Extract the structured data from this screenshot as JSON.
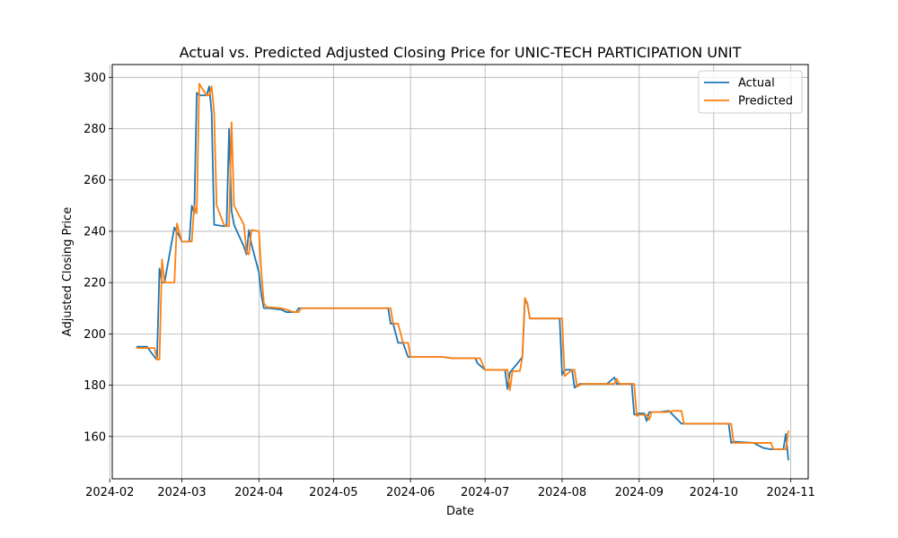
{
  "chart_data": {
    "type": "line",
    "title": "Actual vs. Predicted Adjusted Closing Price for UNIC-TECH PARTICIPATION UNIT",
    "xlabel": "Date",
    "ylabel": "Adjusted Closing Price",
    "xlim": [
      "2024-02-02",
      "2024-11-08"
    ],
    "ylim": [
      143.5,
      305
    ],
    "x_ticks": [
      "2024-02-01",
      "2024-03-01",
      "2024-04-01",
      "2024-05-01",
      "2024-06-01",
      "2024-07-01",
      "2024-08-01",
      "2024-09-01",
      "2024-10-01",
      "2024-11-01"
    ],
    "x_tick_labels": [
      "2024-02",
      "2024-03",
      "2024-04",
      "2024-05",
      "2024-06",
      "2024-07",
      "2024-08",
      "2024-09",
      "2024-10",
      "2024-11"
    ],
    "y_ticks": [
      160,
      180,
      200,
      220,
      240,
      260,
      280,
      300
    ],
    "y_tick_labels": [
      "160",
      "180",
      "200",
      "220",
      "240",
      "260",
      "280",
      "300"
    ],
    "grid": true,
    "legend_position": "top-right",
    "series": [
      {
        "name": "Actual",
        "color": "#1f77b4",
        "points": [
          [
            "2024-02-12",
            195
          ],
          [
            "2024-02-16",
            195
          ],
          [
            "2024-02-19",
            191
          ],
          [
            "2024-02-20",
            190
          ],
          [
            "2024-02-21",
            225.5
          ],
          [
            "2024-02-22",
            220
          ],
          [
            "2024-02-23",
            220
          ],
          [
            "2024-02-27",
            241.5
          ],
          [
            "2024-02-29",
            238
          ],
          [
            "2024-03-01",
            236
          ],
          [
            "2024-03-04",
            236
          ],
          [
            "2024-03-05",
            250
          ],
          [
            "2024-03-06",
            247
          ],
          [
            "2024-03-07",
            294
          ],
          [
            "2024-03-08",
            293
          ],
          [
            "2024-03-11",
            293
          ],
          [
            "2024-03-12",
            296.5
          ],
          [
            "2024-03-13",
            286
          ],
          [
            "2024-03-14",
            242.5
          ],
          [
            "2024-03-18",
            242
          ],
          [
            "2024-03-19",
            242
          ],
          [
            "2024-03-20",
            280
          ],
          [
            "2024-03-21",
            248
          ],
          [
            "2024-03-22",
            242.5
          ],
          [
            "2024-03-26",
            234
          ],
          [
            "2024-03-27",
            231
          ],
          [
            "2024-03-28",
            240.5
          ],
          [
            "2024-03-29",
            235
          ],
          [
            "2024-04-01",
            224
          ],
          [
            "2024-04-02",
            215
          ],
          [
            "2024-04-03",
            210
          ],
          [
            "2024-04-05",
            210
          ],
          [
            "2024-04-10",
            209.5
          ],
          [
            "2024-04-12",
            208.5
          ],
          [
            "2024-04-16",
            208.5
          ],
          [
            "2024-04-17",
            210
          ],
          [
            "2024-05-23",
            210
          ],
          [
            "2024-05-24",
            204
          ],
          [
            "2024-05-25",
            204
          ],
          [
            "2024-05-27",
            196.5
          ],
          [
            "2024-05-29",
            196.5
          ],
          [
            "2024-05-31",
            191
          ],
          [
            "2024-06-05",
            191
          ],
          [
            "2024-06-14",
            191
          ],
          [
            "2024-06-18",
            190.5
          ],
          [
            "2024-06-27",
            190.5
          ],
          [
            "2024-06-28",
            188.5
          ],
          [
            "2024-07-01",
            186
          ],
          [
            "2024-07-09",
            186
          ],
          [
            "2024-07-10",
            178.5
          ],
          [
            "2024-07-11",
            185
          ],
          [
            "2024-07-14",
            188.5
          ],
          [
            "2024-07-16",
            191
          ],
          [
            "2024-07-17",
            212.5
          ],
          [
            "2024-07-18",
            212
          ],
          [
            "2024-07-19",
            206
          ],
          [
            "2024-07-31",
            206
          ],
          [
            "2024-08-01",
            184
          ],
          [
            "2024-08-02",
            186
          ],
          [
            "2024-08-05",
            186
          ],
          [
            "2024-08-06",
            179
          ],
          [
            "2024-08-08",
            180.5
          ],
          [
            "2024-08-19",
            180.5
          ],
          [
            "2024-08-22",
            183
          ],
          [
            "2024-08-23",
            180.5
          ],
          [
            "2024-08-28",
            180.5
          ],
          [
            "2024-08-29",
            180.5
          ],
          [
            "2024-08-30",
            168.5
          ],
          [
            "2024-09-01",
            169
          ],
          [
            "2024-09-03",
            169
          ],
          [
            "2024-09-04",
            166
          ],
          [
            "2024-09-05",
            169.5
          ],
          [
            "2024-09-09",
            169.5
          ],
          [
            "2024-09-13",
            170
          ],
          [
            "2024-09-18",
            165
          ],
          [
            "2024-09-19",
            165
          ],
          [
            "2024-10-07",
            165
          ],
          [
            "2024-10-08",
            157.5
          ],
          [
            "2024-10-09",
            158
          ],
          [
            "2024-10-17",
            157.5
          ],
          [
            "2024-10-21",
            155.5
          ],
          [
            "2024-10-24",
            155
          ],
          [
            "2024-10-28",
            155
          ],
          [
            "2024-10-29",
            155
          ],
          [
            "2024-10-30",
            161
          ],
          [
            "2024-10-31",
            151
          ]
        ]
      },
      {
        "name": "Predicted",
        "color": "#ff7f0e",
        "points": [
          [
            "2024-02-12",
            194.5
          ],
          [
            "2024-02-16",
            194.5
          ],
          [
            "2024-02-19",
            194.5
          ],
          [
            "2024-02-20",
            190
          ],
          [
            "2024-02-21",
            190
          ],
          [
            "2024-02-22",
            229
          ],
          [
            "2024-02-23",
            220
          ],
          [
            "2024-02-26",
            220
          ],
          [
            "2024-02-27",
            220
          ],
          [
            "2024-02-28",
            243
          ],
          [
            "2024-03-01",
            236
          ],
          [
            "2024-03-04",
            236
          ],
          [
            "2024-03-05",
            236
          ],
          [
            "2024-03-06",
            250
          ],
          [
            "2024-03-07",
            247
          ],
          [
            "2024-03-08",
            297.5
          ],
          [
            "2024-03-11",
            293
          ],
          [
            "2024-03-12",
            293
          ],
          [
            "2024-03-13",
            296.5
          ],
          [
            "2024-03-14",
            286
          ],
          [
            "2024-03-15",
            250
          ],
          [
            "2024-03-18",
            242.5
          ],
          [
            "2024-03-19",
            242
          ],
          [
            "2024-03-20",
            242
          ],
          [
            "2024-03-21",
            282.5
          ],
          [
            "2024-03-22",
            250
          ],
          [
            "2024-03-26",
            242.5
          ],
          [
            "2024-03-27",
            232
          ],
          [
            "2024-03-28",
            231
          ],
          [
            "2024-03-29",
            240.5
          ],
          [
            "2024-04-01",
            240
          ],
          [
            "2024-04-02",
            224
          ],
          [
            "2024-04-03",
            212
          ],
          [
            "2024-04-04",
            210.5
          ],
          [
            "2024-04-10",
            210
          ],
          [
            "2024-04-12",
            209.5
          ],
          [
            "2024-04-15",
            208.5
          ],
          [
            "2024-04-17",
            208.5
          ],
          [
            "2024-04-18",
            210
          ],
          [
            "2024-05-23",
            210
          ],
          [
            "2024-05-24",
            210
          ],
          [
            "2024-05-25",
            204
          ],
          [
            "2024-05-27",
            204
          ],
          [
            "2024-05-29",
            196.5
          ],
          [
            "2024-05-31",
            196.5
          ],
          [
            "2024-06-01",
            191
          ],
          [
            "2024-06-14",
            191
          ],
          [
            "2024-06-18",
            190.5
          ],
          [
            "2024-06-29",
            190.5
          ],
          [
            "2024-07-01",
            186
          ],
          [
            "2024-07-09",
            186
          ],
          [
            "2024-07-10",
            186
          ],
          [
            "2024-07-11",
            178
          ],
          [
            "2024-07-12",
            185.5
          ],
          [
            "2024-07-15",
            185.5
          ],
          [
            "2024-07-16",
            191
          ],
          [
            "2024-07-17",
            214
          ],
          [
            "2024-07-18",
            212
          ],
          [
            "2024-07-19",
            206
          ],
          [
            "2024-07-31",
            206
          ],
          [
            "2024-08-01",
            206
          ],
          [
            "2024-08-02",
            183.5
          ],
          [
            "2024-08-05",
            186
          ],
          [
            "2024-08-06",
            186
          ],
          [
            "2024-08-07",
            179.5
          ],
          [
            "2024-08-09",
            180.5
          ],
          [
            "2024-08-22",
            180.5
          ],
          [
            "2024-08-23",
            182.5
          ],
          [
            "2024-08-24",
            180.5
          ],
          [
            "2024-08-28",
            180.5
          ],
          [
            "2024-08-30",
            180.5
          ],
          [
            "2024-08-31",
            168
          ],
          [
            "2024-09-01",
            168.5
          ],
          [
            "2024-09-03",
            168.5
          ],
          [
            "2024-09-04",
            168.5
          ],
          [
            "2024-09-05",
            166.5
          ],
          [
            "2024-09-06",
            169.5
          ],
          [
            "2024-09-12",
            169.5
          ],
          [
            "2024-09-15",
            170
          ],
          [
            "2024-09-18",
            170
          ],
          [
            "2024-09-19",
            165
          ],
          [
            "2024-10-07",
            165
          ],
          [
            "2024-10-08",
            165
          ],
          [
            "2024-10-09",
            157.5
          ],
          [
            "2024-10-17",
            157.5
          ],
          [
            "2024-10-20",
            157.5
          ],
          [
            "2024-10-24",
            157.5
          ],
          [
            "2024-10-25",
            155
          ],
          [
            "2024-10-28",
            155
          ],
          [
            "2024-10-30",
            155
          ],
          [
            "2024-10-31",
            162
          ]
        ]
      }
    ]
  }
}
